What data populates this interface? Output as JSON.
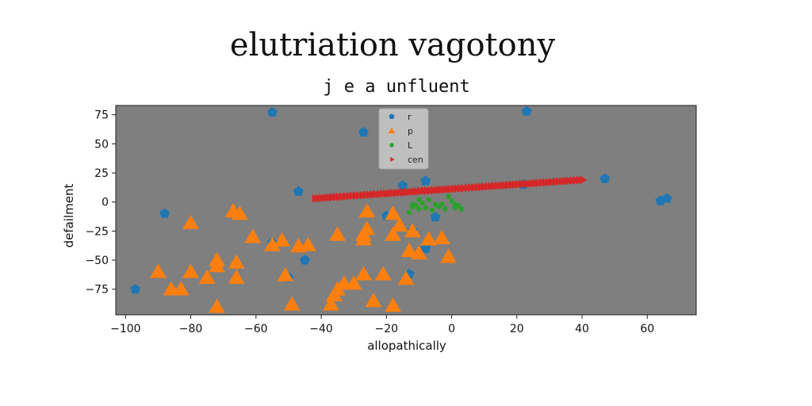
{
  "chart_data": {
    "type": "scatter",
    "title": "elutriation vagotony",
    "subtitle": "j e a unfluent",
    "xlabel": "allopathically",
    "ylabel": "defailment",
    "xlim": [
      -103,
      75
    ],
    "ylim": [
      -97,
      83
    ],
    "xticks": [
      -100,
      -80,
      -60,
      -40,
      -20,
      0,
      20,
      40,
      60
    ],
    "yticks": [
      75,
      50,
      25,
      0,
      -25,
      -50,
      -75
    ],
    "xtick_labels": [
      "−100",
      "−80",
      "−60",
      "−40",
      "−20",
      "0",
      "20",
      "40",
      "60"
    ],
    "ytick_labels": [
      "75",
      "50",
      "25",
      "0",
      "−25",
      "−50",
      "−75"
    ],
    "grid": false,
    "legend_position": "top-center",
    "plot_background": "#7f7f7f",
    "series": [
      {
        "name": "r",
        "marker": "pentagon",
        "color": "#1f77b4",
        "points": [
          [
            -55,
            77
          ],
          [
            -27,
            60
          ],
          [
            23,
            78
          ],
          [
            -12,
            35
          ],
          [
            -8,
            18
          ],
          [
            -15,
            14
          ],
          [
            22,
            15
          ],
          [
            47,
            20
          ],
          [
            -47,
            9
          ],
          [
            -88,
            -10
          ],
          [
            -97,
            -75
          ],
          [
            -20,
            -12
          ],
          [
            -12,
            -25
          ],
          [
            -5,
            -13
          ],
          [
            -8,
            -40
          ],
          [
            -13,
            -62
          ],
          [
            -55,
            -35
          ],
          [
            -50,
            -65
          ],
          [
            -45,
            -50
          ],
          [
            64,
            1
          ],
          [
            66,
            3
          ]
        ]
      },
      {
        "name": "p",
        "marker": "triangle",
        "color": "#ff7f0e",
        "points": [
          [
            -80,
            -18
          ],
          [
            -67,
            -8
          ],
          [
            -65,
            -10
          ],
          [
            -61,
            -30
          ],
          [
            -55,
            -37
          ],
          [
            -52,
            -33
          ],
          [
            -47,
            -38
          ],
          [
            -44,
            -37
          ],
          [
            -35,
            -28
          ],
          [
            -26,
            -8
          ],
          [
            -26,
            -23
          ],
          [
            -27,
            -28
          ],
          [
            -27,
            -32
          ],
          [
            -18,
            -10
          ],
          [
            -16,
            -20
          ],
          [
            -12,
            -25
          ],
          [
            -18,
            -28
          ],
          [
            -13,
            -42
          ],
          [
            -10,
            -44
          ],
          [
            -7,
            -32
          ],
          [
            -3,
            -31
          ],
          [
            -1,
            -47
          ],
          [
            -90,
            -60
          ],
          [
            -86,
            -75
          ],
          [
            -83,
            -75
          ],
          [
            -80,
            -60
          ],
          [
            -75,
            -65
          ],
          [
            -72,
            -55
          ],
          [
            -72,
            -50
          ],
          [
            -66,
            -65
          ],
          [
            -66,
            -52
          ],
          [
            -72,
            -90
          ],
          [
            -51,
            -63
          ],
          [
            -49,
            -88
          ],
          [
            -37,
            -88
          ],
          [
            -36,
            -80
          ],
          [
            -35,
            -75
          ],
          [
            -33,
            -70
          ],
          [
            -30,
            -70
          ],
          [
            -27,
            -62
          ],
          [
            -21,
            -62
          ],
          [
            -24,
            -85
          ],
          [
            -18,
            -89
          ],
          [
            -14,
            -66
          ]
        ]
      },
      {
        "name": "L",
        "marker": "circle",
        "color": "#2ca02c",
        "points": [
          [
            -12,
            -4
          ],
          [
            -10,
            -6
          ],
          [
            -8,
            -5
          ],
          [
            -6,
            -7
          ],
          [
            -3,
            -2
          ],
          [
            0,
            1
          ],
          [
            1,
            -5
          ],
          [
            -13,
            -9
          ],
          [
            -11,
            -3
          ],
          [
            -9,
            -1
          ],
          [
            -7,
            2
          ],
          [
            -5,
            -2
          ],
          [
            -4,
            -4
          ],
          [
            -2,
            -6
          ],
          [
            -1,
            5
          ],
          [
            1,
            -2
          ],
          [
            2,
            -3
          ],
          [
            3,
            -6
          ],
          [
            -12,
            -2
          ],
          [
            -10,
            2
          ]
        ]
      },
      {
        "name": "cen",
        "marker": "triangle-right",
        "color": "#d62728",
        "start": [
          -42,
          3
        ],
        "end": [
          40,
          19
        ],
        "count": 80
      }
    ]
  }
}
